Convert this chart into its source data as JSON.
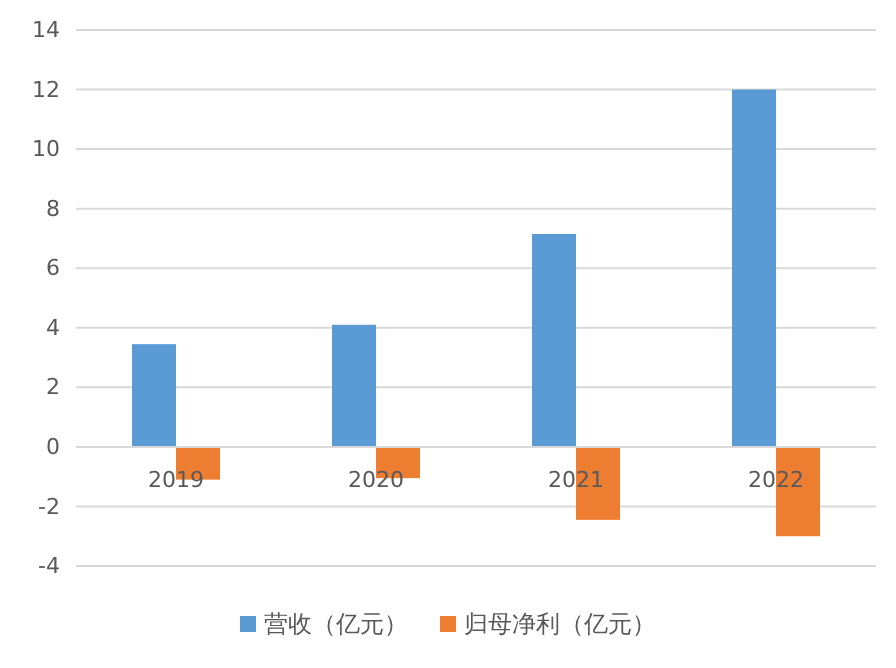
{
  "chart_data": {
    "type": "bar",
    "categories": [
      "2019",
      "2020",
      "2021",
      "2022"
    ],
    "series": [
      {
        "name": "营收（亿元）",
        "color": "#5b9bd5",
        "values": [
          3.45,
          4.1,
          7.15,
          12
        ]
      },
      {
        "name": "归母净利（亿元）",
        "color": "#ed7d31",
        "values": [
          -1.1,
          -1.05,
          -2.45,
          -3
        ]
      }
    ],
    "ylim": [
      -4,
      14
    ],
    "yticks": [
      -4,
      -2,
      0,
      2,
      4,
      6,
      8,
      10,
      12,
      14
    ],
    "grid": "y",
    "legend": "bottom"
  }
}
